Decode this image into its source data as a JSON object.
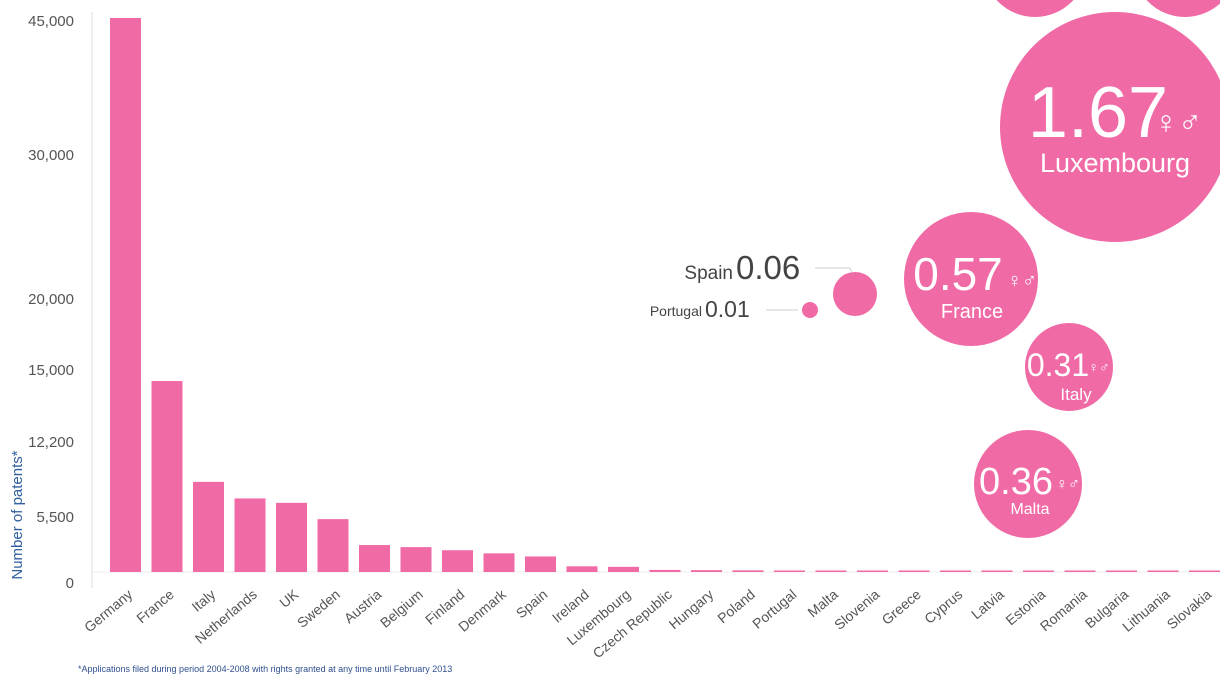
{
  "chart_data": [
    {
      "type": "bar",
      "ylabel": "Number of patents*",
      "yticks": [
        "45,000",
        "30,000",
        "20,000",
        "15,000",
        "12,200",
        "5,500",
        "0"
      ],
      "ylim": [
        0,
        45000
      ],
      "grid": false,
      "color": "#f06aa6",
      "categories": [
        "Germany",
        "France",
        "Italy",
        "Netherlands",
        "UK",
        "Sweden",
        "Austria",
        "Belgium",
        "Finland",
        "Denmark",
        "Spain",
        "Ireland",
        "Luxembourg",
        "Czech Republic",
        "Hungary",
        "Poland",
        "Portugal",
        "Malta",
        "Slovenia",
        "Greece",
        "Cyprus",
        "Latvia",
        "Estonia",
        "Romania",
        "Bulgaria",
        "Lithuania",
        "Slovakia"
      ],
      "values": [
        45000,
        14500,
        8500,
        7000,
        6600,
        5100,
        2600,
        2400,
        2100,
        1800,
        1500,
        550,
        500,
        200,
        180,
        160,
        130,
        110,
        100,
        90,
        80,
        40,
        35,
        25,
        20,
        15,
        15
      ]
    },
    {
      "type": "bubble",
      "color": "#f06aa6",
      "points": [
        {
          "label": "Luxembourg",
          "value": "1.67",
          "display": "1.67"
        },
        {
          "label": "France",
          "value": "0.57",
          "display": "0.57"
        },
        {
          "label": "Italy",
          "value": "0.31",
          "display": "0.31"
        },
        {
          "label": "Malta",
          "value": "0.36",
          "display": "0.36"
        },
        {
          "label": "Spain",
          "value": "0.06",
          "display": "0.06"
        },
        {
          "label": "Portugal",
          "value": "0.01",
          "display": "0.01"
        }
      ]
    }
  ],
  "footnote": "*Applications filed during period 2004-2008 with rights granted at any time until February 2013"
}
